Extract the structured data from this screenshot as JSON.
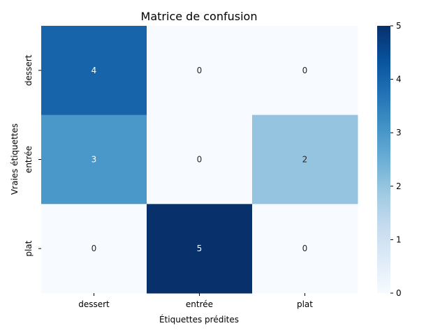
{
  "chart_data": {
    "type": "heatmap",
    "title": "Matrice de confusion",
    "xlabel": "Étiquettes prédites",
    "ylabel": "Vraies étiquettes",
    "x_categories": [
      "dessert",
      "entrée",
      "plat"
    ],
    "y_categories": [
      "dessert",
      "entrée",
      "plat"
    ],
    "values": [
      [
        4,
        0,
        0
      ],
      [
        3,
        0,
        2
      ],
      [
        0,
        5,
        0
      ]
    ],
    "colormap": "Blues",
    "colorbar": {
      "min": 0,
      "max": 5,
      "ticks": [
        0,
        1,
        2,
        3,
        4,
        5
      ]
    },
    "annotations": true
  }
}
